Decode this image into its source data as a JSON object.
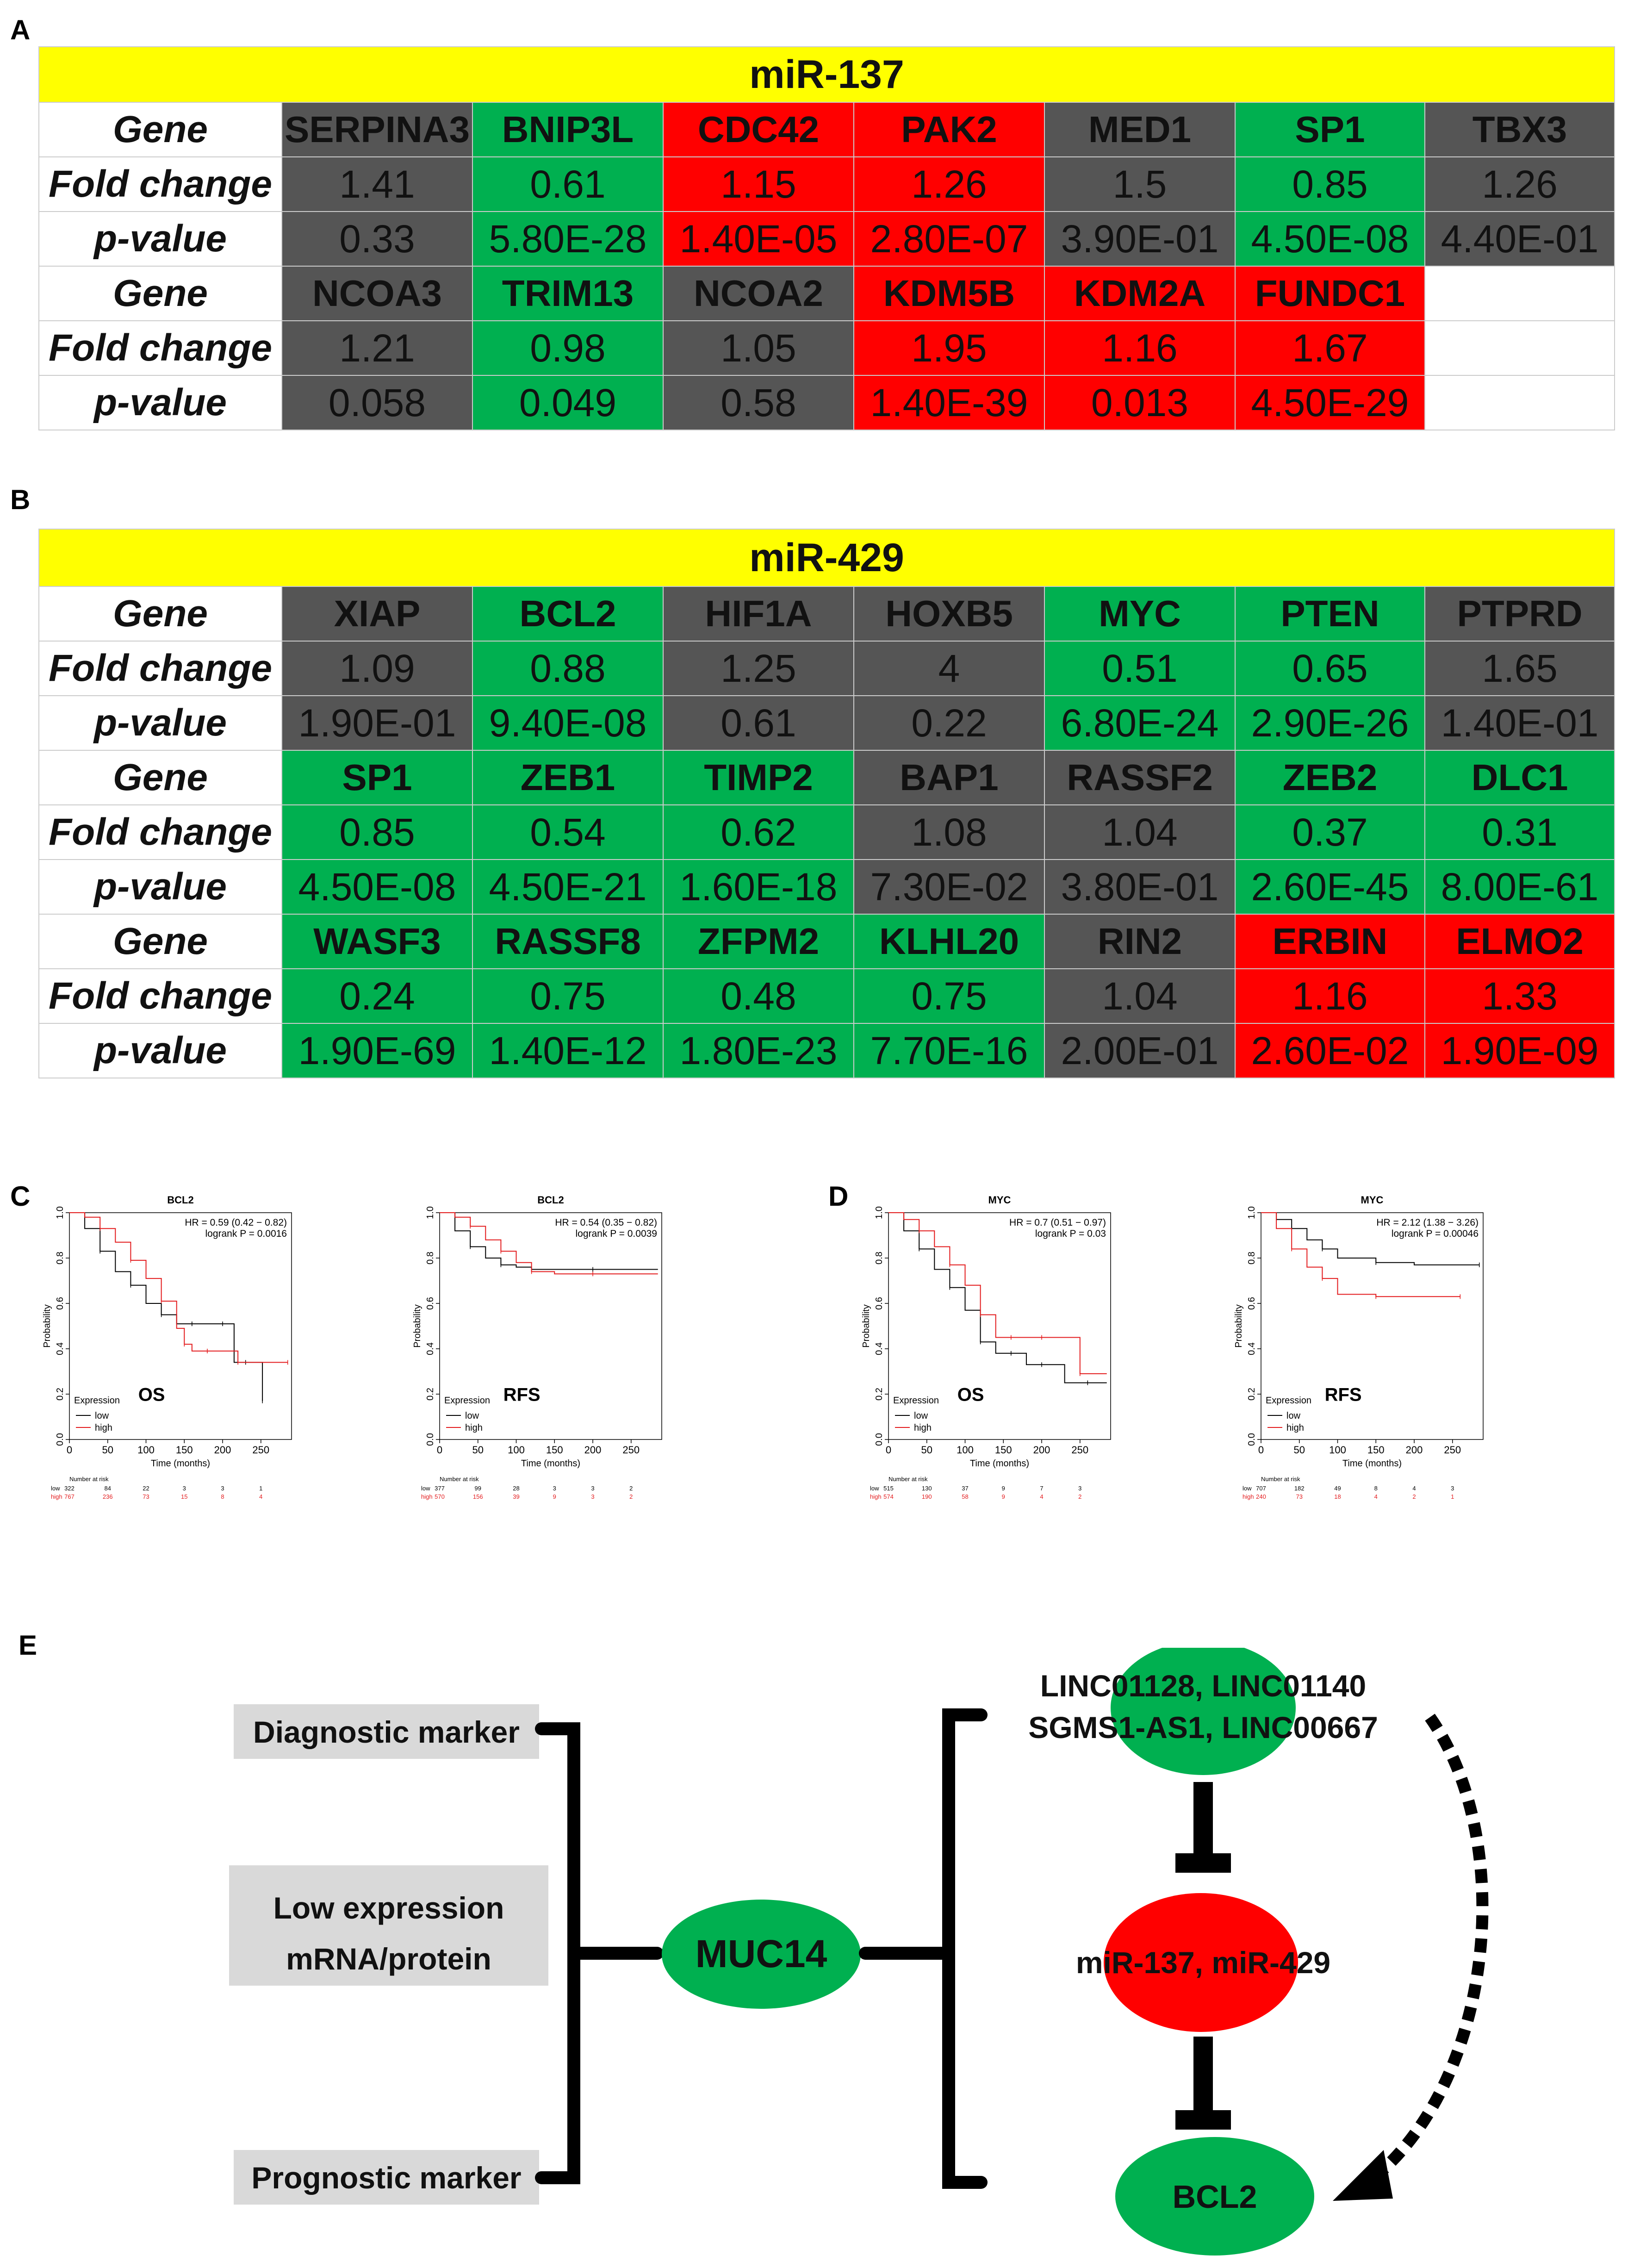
{
  "panels": {
    "A": "A",
    "B": "B",
    "C": "C",
    "D": "D",
    "E": "E"
  },
  "colors": {
    "gray": "#555555",
    "green": "#00b050",
    "red": "#ff0000",
    "yellow": "#ffff00",
    "white": "#ffffff",
    "km_low": "#000000",
    "km_high": "#e31a1c"
  },
  "tableA": {
    "title": "miR-137",
    "row_labels": {
      "gene": "Gene",
      "fold": "Fold change",
      "p": "p-value"
    },
    "blocks": [
      {
        "genes": [
          "SERPINA3",
          "BNIP3L",
          "CDC42",
          "PAK2",
          "MED1",
          "SP1",
          "TBX3"
        ],
        "fold": [
          "1.41",
          "0.61",
          "1.15",
          "1.26",
          "1.5",
          "0.85",
          "1.26"
        ],
        "p": [
          "0.33",
          "5.80E-28",
          "1.40E-05",
          "2.80E-07",
          "3.90E-01",
          "4.50E-08",
          "4.40E-01"
        ],
        "status": [
          "g",
          "gr",
          "r",
          "r",
          "g",
          "gr",
          "g"
        ]
      },
      {
        "genes": [
          "NCOA3",
          "TRIM13",
          "NCOA2",
          "KDM5B",
          "KDM2A",
          "FUNDC1",
          ""
        ],
        "fold": [
          "1.21",
          "0.98",
          "1.05",
          "1.95",
          "1.16",
          "1.67",
          ""
        ],
        "p": [
          "0.058",
          "0.049",
          "0.58",
          "1.40E-39",
          "0.013",
          "4.50E-29",
          ""
        ],
        "status": [
          "g",
          "gr",
          "g",
          "r",
          "r",
          "r",
          "w"
        ]
      }
    ]
  },
  "tableB": {
    "title": "miR-429",
    "row_labels": {
      "gene": "Gene",
      "fold": "Fold change",
      "p": "p-value"
    },
    "blocks": [
      {
        "genes": [
          "XIAP",
          "BCL2",
          "HIF1A",
          "HOXB5",
          "MYC",
          "PTEN",
          "PTPRD"
        ],
        "fold": [
          "1.09",
          "0.88",
          "1.25",
          "4",
          "0.51",
          "0.65",
          "1.65"
        ],
        "p": [
          "1.90E-01",
          "9.40E-08",
          "0.61",
          "0.22",
          "6.80E-24",
          "2.90E-26",
          "1.40E-01"
        ],
        "status": [
          "g",
          "gr",
          "g",
          "g",
          "gr",
          "gr",
          "g"
        ]
      },
      {
        "genes": [
          "SP1",
          "ZEB1",
          "TIMP2",
          "BAP1",
          "RASSF2",
          "ZEB2",
          "DLC1"
        ],
        "fold": [
          "0.85",
          "0.54",
          "0.62",
          "1.08",
          "1.04",
          "0.37",
          "0.31"
        ],
        "p": [
          "4.50E-08",
          "4.50E-21",
          "1.60E-18",
          "7.30E-02",
          "3.80E-01",
          "2.60E-45",
          "8.00E-61"
        ],
        "status": [
          "gr",
          "gr",
          "gr",
          "g",
          "g",
          "gr",
          "gr"
        ]
      },
      {
        "genes": [
          "WASF3",
          "RASSF8",
          "ZFPM2",
          "KLHL20",
          "RIN2",
          "ERBIN",
          "ELMO2"
        ],
        "fold": [
          "0.24",
          "0.75",
          "0.48",
          "0.75",
          "1.04",
          "1.16",
          "1.33"
        ],
        "p": [
          "1.90E-69",
          "1.40E-12",
          "1.80E-23",
          "7.70E-16",
          "2.00E-01",
          "2.60E-02",
          "1.90E-09"
        ],
        "status": [
          "gr",
          "gr",
          "gr",
          "gr",
          "g",
          "r",
          "r"
        ]
      }
    ]
  },
  "km_common": {
    "ylabel": "Probability",
    "xlabel": "Time (months)",
    "yticks": [
      "0.0",
      "0.2",
      "0.4",
      "0.6",
      "0.8",
      "1.0"
    ],
    "xticks": [
      "0",
      "50",
      "100",
      "150",
      "200",
      "250"
    ],
    "legend_title": "Expression",
    "legend_low": "low",
    "legend_high": "high",
    "risk_title": "Number at risk",
    "risk_low_label": "low",
    "risk_high_label": "high"
  },
  "chart_data": [
    {
      "type": "line",
      "title": "BCL2",
      "annotation": "OS",
      "hr": "HR = 0.59 (0.42 − 0.82)",
      "logrank": "logrank P = 0.0016",
      "xlim": [
        0,
        290
      ],
      "ylim": [
        0,
        1
      ],
      "series": [
        {
          "name": "low",
          "x": [
            0,
            20,
            40,
            60,
            80,
            100,
            120,
            140,
            160,
            180,
            200,
            215,
            230,
            240,
            252
          ],
          "y": [
            1,
            0.93,
            0.83,
            0.74,
            0.68,
            0.6,
            0.55,
            0.51,
            0.51,
            0.51,
            0.51,
            0.34,
            0.34,
            0.34,
            0.17
          ]
        },
        {
          "name": "high",
          "x": [
            0,
            20,
            40,
            60,
            80,
            100,
            120,
            140,
            150,
            160,
            180,
            200,
            220,
            240,
            285
          ],
          "y": [
            1,
            0.98,
            0.93,
            0.87,
            0.79,
            0.71,
            0.61,
            0.49,
            0.42,
            0.39,
            0.39,
            0.39,
            0.34,
            0.34,
            0.34
          ]
        }
      ],
      "risk_low": [
        "322",
        "84",
        "22",
        "3",
        "3",
        "1"
      ],
      "risk_high": [
        "767",
        "236",
        "73",
        "15",
        "8",
        "4"
      ]
    },
    {
      "type": "line",
      "title": "BCL2",
      "annotation": "RFS",
      "hr": "HR = 0.54 (0.35 − 0.82)",
      "logrank": "logrank P = 0.0039",
      "xlim": [
        0,
        290
      ],
      "ylim": [
        0,
        1
      ],
      "series": [
        {
          "name": "low",
          "x": [
            0,
            20,
            40,
            60,
            80,
            100,
            120,
            150,
            200,
            285
          ],
          "y": [
            1,
            0.92,
            0.85,
            0.8,
            0.77,
            0.76,
            0.75,
            0.75,
            0.75,
            0.75
          ]
        },
        {
          "name": "high",
          "x": [
            0,
            20,
            40,
            60,
            80,
            100,
            120,
            150,
            200,
            285
          ],
          "y": [
            1,
            0.98,
            0.94,
            0.88,
            0.83,
            0.78,
            0.74,
            0.73,
            0.73,
            0.73
          ]
        }
      ],
      "risk_low": [
        "377",
        "99",
        "28",
        "3",
        "3",
        "2"
      ],
      "risk_high": [
        "570",
        "156",
        "39",
        "9",
        "3",
        "2"
      ]
    },
    {
      "type": "line",
      "title": "MYC",
      "annotation": "OS",
      "hr": "HR = 0.7 (0.51 − 0.97)",
      "logrank": "logrank P = 0.03",
      "xlim": [
        0,
        290
      ],
      "ylim": [
        0,
        1
      ],
      "series": [
        {
          "name": "low",
          "x": [
            0,
            20,
            40,
            60,
            80,
            100,
            120,
            140,
            160,
            180,
            200,
            230,
            260,
            285
          ],
          "y": [
            1,
            0.92,
            0.84,
            0.75,
            0.67,
            0.57,
            0.43,
            0.38,
            0.38,
            0.33,
            0.33,
            0.25,
            0.25,
            0.25
          ]
        },
        {
          "name": "high",
          "x": [
            0,
            20,
            40,
            60,
            80,
            100,
            120,
            140,
            160,
            180,
            200,
            230,
            250,
            285
          ],
          "y": [
            1,
            0.97,
            0.92,
            0.85,
            0.77,
            0.68,
            0.55,
            0.45,
            0.45,
            0.45,
            0.45,
            0.45,
            0.29,
            0.29
          ]
        }
      ],
      "risk_low": [
        "515",
        "130",
        "37",
        "9",
        "7",
        "3"
      ],
      "risk_high": [
        "574",
        "190",
        "58",
        "9",
        "4",
        "2"
      ]
    },
    {
      "type": "line",
      "title": "MYC",
      "annotation": "RFS",
      "hr": "HR = 2.12 (1.38 − 3.26)",
      "logrank": "logrank P = 0.00046",
      "xlim": [
        0,
        290
      ],
      "ylim": [
        0,
        1
      ],
      "series": [
        {
          "name": "low",
          "x": [
            0,
            20,
            40,
            60,
            80,
            100,
            150,
            200,
            285
          ],
          "y": [
            1,
            0.97,
            0.93,
            0.88,
            0.84,
            0.8,
            0.78,
            0.77,
            0.77
          ]
        },
        {
          "name": "high",
          "x": [
            0,
            20,
            40,
            60,
            80,
            100,
            150,
            200,
            260
          ],
          "y": [
            1,
            0.93,
            0.84,
            0.76,
            0.71,
            0.64,
            0.63,
            0.63,
            0.63
          ]
        }
      ],
      "risk_low": [
        "707",
        "182",
        "49",
        "8",
        "4",
        "3"
      ],
      "risk_high": [
        "240",
        "73",
        "18",
        "4",
        "2",
        "1"
      ]
    }
  ],
  "diagram": {
    "diagnostic": "Diagnostic marker",
    "low_expr_1": "Low expression",
    "low_expr_2": "mRNA/protein",
    "prognostic": "Prognostic marker",
    "muc14": "MUC14",
    "lnc_1": "LINC01128, LINC01140",
    "lnc_2": "SGMS1-AS1, LINC00667",
    "mirs": "miR-137, miR-429",
    "bcl2": "BCL2"
  }
}
